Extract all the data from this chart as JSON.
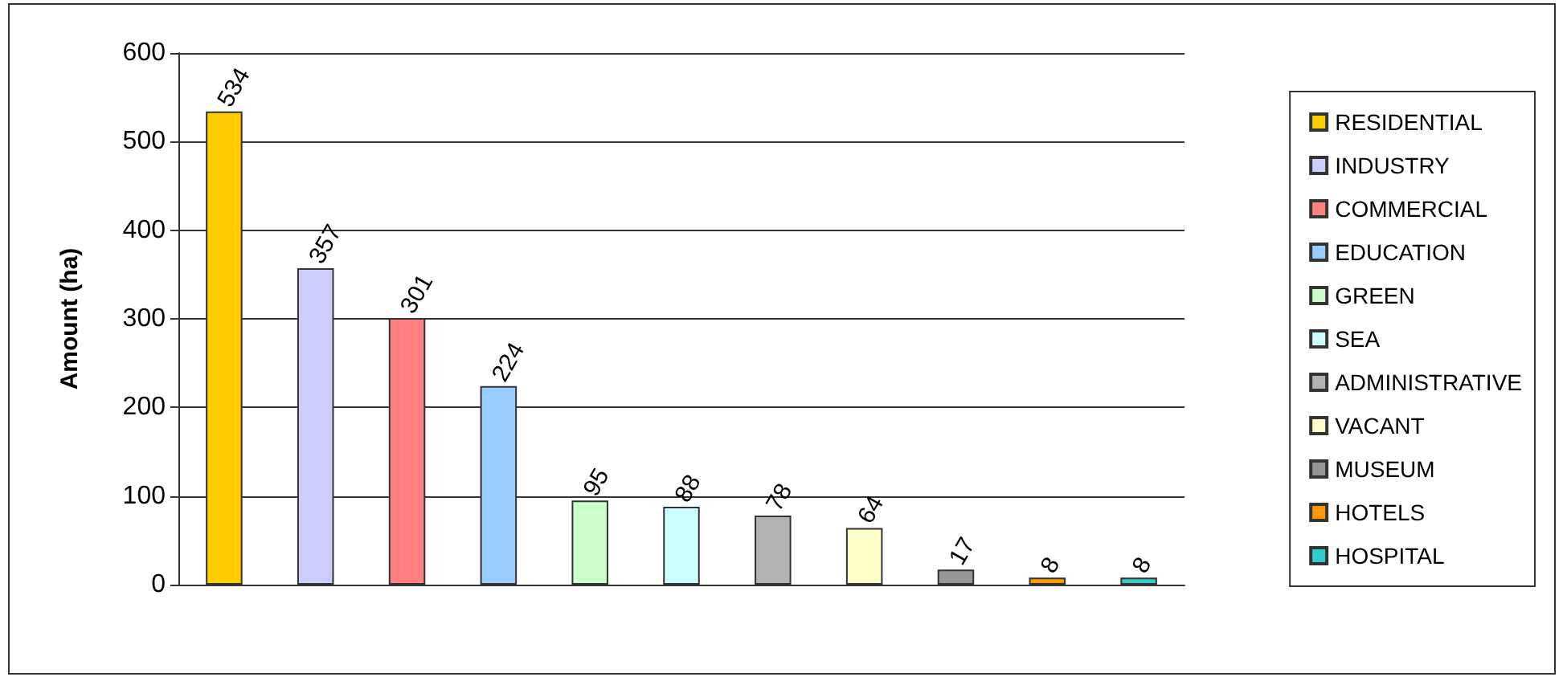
{
  "chart_data": {
    "type": "bar",
    "ylabel": "Amount (ha)",
    "categories": [
      null,
      null,
      null,
      null,
      null,
      null,
      null,
      null,
      null,
      null,
      null
    ],
    "series": [
      {
        "name": "RESIDENTIAL",
        "color": "#ffcc00",
        "values": [
          534,
          null,
          null,
          null,
          null,
          null,
          null,
          null,
          null,
          null,
          null
        ]
      },
      {
        "name": "INDUSTRY",
        "color": "#ccccff",
        "values": [
          null,
          357,
          null,
          null,
          null,
          null,
          null,
          null,
          null,
          null,
          null
        ]
      },
      {
        "name": "COMMERCIAL",
        "color": "#ff8080",
        "values": [
          null,
          null,
          301,
          null,
          null,
          null,
          null,
          null,
          null,
          null,
          null
        ]
      },
      {
        "name": "EDUCATION",
        "color": "#99ccff",
        "values": [
          null,
          null,
          null,
          224,
          null,
          null,
          null,
          null,
          null,
          null,
          null
        ]
      },
      {
        "name": "GREEN",
        "color": "#ccffcc",
        "values": [
          null,
          null,
          null,
          null,
          95,
          null,
          null,
          null,
          null,
          null,
          null
        ]
      },
      {
        "name": "SEA",
        "color": "#ccffff",
        "values": [
          null,
          null,
          null,
          null,
          null,
          88,
          null,
          null,
          null,
          null,
          null
        ]
      },
      {
        "name": "ADMINISTRATIVE",
        "color": "#b2b2b2",
        "values": [
          null,
          null,
          null,
          null,
          null,
          null,
          78,
          null,
          null,
          null,
          null
        ]
      },
      {
        "name": "VACANT",
        "color": "#ffffcc",
        "values": [
          null,
          null,
          null,
          null,
          null,
          null,
          null,
          64,
          null,
          null,
          null
        ]
      },
      {
        "name": "MUSEUM",
        "color": "#969696",
        "values": [
          null,
          null,
          null,
          null,
          null,
          null,
          null,
          null,
          17,
          null,
          null
        ]
      },
      {
        "name": "HOTELS",
        "color": "#ff9900",
        "values": [
          null,
          null,
          null,
          null,
          null,
          null,
          null,
          null,
          null,
          8,
          null
        ]
      },
      {
        "name": "HOSPITAL",
        "color": "#33cccc",
        "values": [
          null,
          null,
          null,
          null,
          null,
          null,
          null,
          null,
          null,
          null,
          8
        ]
      }
    ],
    "ylim": [
      0,
      600
    ],
    "yticks": [
      0,
      100,
      200,
      300,
      400,
      500,
      600
    ],
    "grid": "y",
    "legend": "right",
    "data_labels": true
  }
}
